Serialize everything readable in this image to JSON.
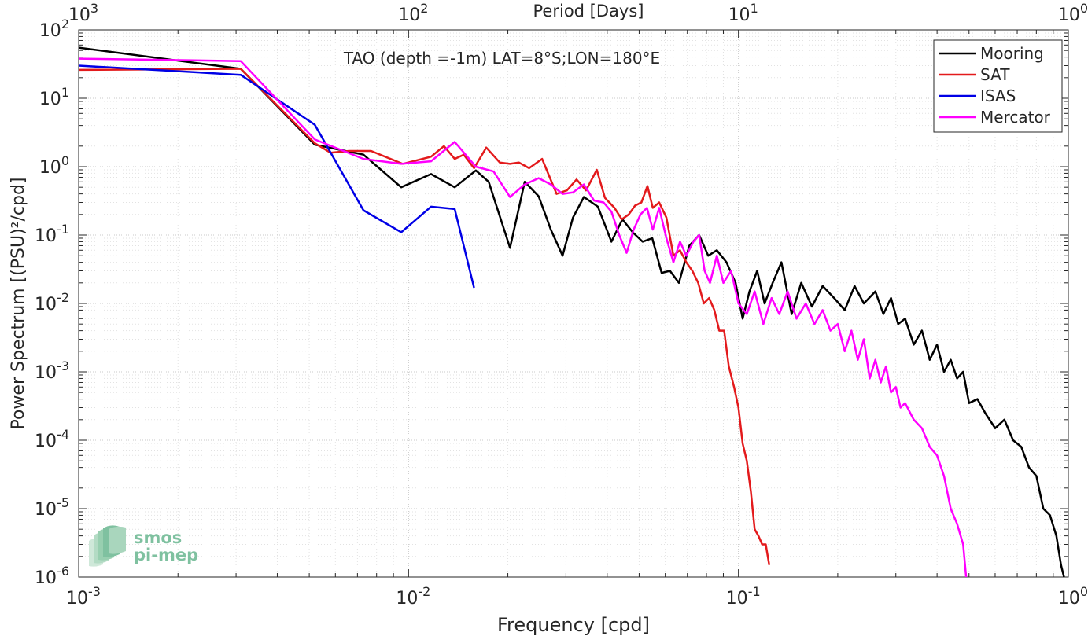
{
  "chart_data": {
    "type": "line",
    "title": "TAO (depth =-1m) LAT=8°S;LON=180°E",
    "xlabel": "Frequency [cpd]",
    "ylabel": "Power Spectrum [(PSU)²/cpd]",
    "top_xlabel": "Period [Days]",
    "xscale": "log",
    "yscale": "log",
    "xlim": [
      0.001,
      1
    ],
    "ylim": [
      1e-06,
      100
    ],
    "grid": true,
    "legend_position": "top-right",
    "x_ticks": [
      {
        "value": 0.001,
        "base": "10",
        "exp": "-3"
      },
      {
        "value": 0.01,
        "base": "10",
        "exp": "-2"
      },
      {
        "value": 0.1,
        "base": "10",
        "exp": "-1"
      },
      {
        "value": 1,
        "base": "10",
        "exp": "0"
      }
    ],
    "top_ticks": [
      {
        "value": 0.001,
        "base": "10",
        "exp": "3"
      },
      {
        "value": 0.01,
        "base": "10",
        "exp": "2"
      },
      {
        "value": 0.1,
        "base": "10",
        "exp": "1"
      },
      {
        "value": 1,
        "base": "10",
        "exp": "0"
      }
    ],
    "y_ticks": [
      {
        "value": 100,
        "base": "10",
        "exp": "2"
      },
      {
        "value": 10,
        "base": "10",
        "exp": "1"
      },
      {
        "value": 1,
        "base": "10",
        "exp": "0"
      },
      {
        "value": 0.1,
        "base": "10",
        "exp": "-1"
      },
      {
        "value": 0.01,
        "base": "10",
        "exp": "-2"
      },
      {
        "value": 0.001,
        "base": "10",
        "exp": "-3"
      },
      {
        "value": 0.0001,
        "base": "10",
        "exp": "-4"
      },
      {
        "value": 1e-05,
        "base": "10",
        "exp": "-5"
      },
      {
        "value": 1e-06,
        "base": "10",
        "exp": "-6"
      }
    ],
    "series": [
      {
        "name": "Mooring",
        "color": "#000000",
        "points": [
          [
            0.001,
            55
          ],
          [
            0.0031,
            27
          ],
          [
            0.0052,
            2.1
          ],
          [
            0.0073,
            1.5
          ],
          [
            0.0095,
            0.5
          ],
          [
            0.0117,
            0.78
          ],
          [
            0.0138,
            0.5
          ],
          [
            0.016,
            0.88
          ],
          [
            0.0175,
            0.6
          ],
          [
            0.0203,
            0.065
          ],
          [
            0.0225,
            0.6
          ],
          [
            0.0248,
            0.37
          ],
          [
            0.027,
            0.12
          ],
          [
            0.0293,
            0.05
          ],
          [
            0.0315,
            0.18
          ],
          [
            0.034,
            0.36
          ],
          [
            0.0375,
            0.26
          ],
          [
            0.0412,
            0.08
          ],
          [
            0.0445,
            0.17
          ],
          [
            0.0478,
            0.11
          ],
          [
            0.0512,
            0.08
          ],
          [
            0.0548,
            0.09
          ],
          [
            0.0585,
            0.028
          ],
          [
            0.062,
            0.03
          ],
          [
            0.066,
            0.02
          ],
          [
            0.071,
            0.07
          ],
          [
            0.076,
            0.1
          ],
          [
            0.081,
            0.05
          ],
          [
            0.086,
            0.06
          ],
          [
            0.092,
            0.04
          ],
          [
            0.098,
            0.02
          ],
          [
            0.103,
            0.006
          ],
          [
            0.108,
            0.015
          ],
          [
            0.114,
            0.03
          ],
          [
            0.12,
            0.01
          ],
          [
            0.127,
            0.02
          ],
          [
            0.135,
            0.04
          ],
          [
            0.145,
            0.007
          ],
          [
            0.155,
            0.02
          ],
          [
            0.167,
            0.009
          ],
          [
            0.18,
            0.018
          ],
          [
            0.195,
            0.012
          ],
          [
            0.21,
            0.008
          ],
          [
            0.225,
            0.018
          ],
          [
            0.24,
            0.01
          ],
          [
            0.26,
            0.015
          ],
          [
            0.275,
            0.007
          ],
          [
            0.29,
            0.012
          ],
          [
            0.305,
            0.005
          ],
          [
            0.32,
            0.006
          ],
          [
            0.34,
            0.0025
          ],
          [
            0.36,
            0.004
          ],
          [
            0.38,
            0.0015
          ],
          [
            0.4,
            0.0025
          ],
          [
            0.42,
            0.001
          ],
          [
            0.44,
            0.0015
          ],
          [
            0.46,
            0.0008
          ],
          [
            0.48,
            0.001
          ],
          [
            0.5,
            0.00035
          ],
          [
            0.53,
            0.0004
          ],
          [
            0.56,
            0.00025
          ],
          [
            0.6,
            0.00015
          ],
          [
            0.64,
            0.0002
          ],
          [
            0.68,
            0.0001
          ],
          [
            0.72,
            8e-05
          ],
          [
            0.76,
            4e-05
          ],
          [
            0.8,
            3e-05
          ],
          [
            0.84,
            1e-05
          ],
          [
            0.88,
            8e-06
          ],
          [
            0.92,
            4e-06
          ],
          [
            0.95,
            1.5e-06
          ],
          [
            0.97,
            1e-06
          ]
        ]
      },
      {
        "name": "SAT",
        "color": "#e31a1c",
        "points": [
          [
            0.001,
            26
          ],
          [
            0.0031,
            27
          ],
          [
            0.0052,
            2.2
          ],
          [
            0.0058,
            1.6
          ],
          [
            0.0066,
            1.7
          ],
          [
            0.0077,
            1.7
          ],
          [
            0.0096,
            1.1
          ],
          [
            0.0117,
            1.4
          ],
          [
            0.0128,
            2.0
          ],
          [
            0.0138,
            1.3
          ],
          [
            0.0147,
            1.5
          ],
          [
            0.0158,
            0.95
          ],
          [
            0.0172,
            1.9
          ],
          [
            0.0189,
            1.15
          ],
          [
            0.0203,
            1.1
          ],
          [
            0.0216,
            1.15
          ],
          [
            0.0232,
            0.95
          ],
          [
            0.0254,
            1.3
          ],
          [
            0.0281,
            0.4
          ],
          [
            0.0302,
            0.45
          ],
          [
            0.0323,
            0.65
          ],
          [
            0.0345,
            0.45
          ],
          [
            0.0372,
            0.9
          ],
          [
            0.0394,
            0.35
          ],
          [
            0.0421,
            0.25
          ],
          [
            0.0443,
            0.17
          ],
          [
            0.0465,
            0.2
          ],
          [
            0.0486,
            0.27
          ],
          [
            0.0508,
            0.3
          ],
          [
            0.053,
            0.52
          ],
          [
            0.055,
            0.25
          ],
          [
            0.0575,
            0.3
          ],
          [
            0.0605,
            0.18
          ],
          [
            0.0635,
            0.05
          ],
          [
            0.0665,
            0.06
          ],
          [
            0.0695,
            0.04
          ],
          [
            0.0725,
            0.03
          ],
          [
            0.0755,
            0.02
          ],
          [
            0.0785,
            0.01
          ],
          [
            0.0815,
            0.012
          ],
          [
            0.0845,
            0.008
          ],
          [
            0.0875,
            0.004
          ],
          [
            0.0905,
            0.004
          ],
          [
            0.0935,
            0.0012
          ],
          [
            0.097,
            0.0006
          ],
          [
            0.1,
            0.0003
          ],
          [
            0.103,
            9e-05
          ],
          [
            0.106,
            5e-05
          ],
          [
            0.109,
            1.8e-05
          ],
          [
            0.112,
            5e-06
          ],
          [
            0.115,
            4e-06
          ],
          [
            0.118,
            3e-06
          ],
          [
            0.121,
            3e-06
          ],
          [
            0.124,
            1.5e-06
          ]
        ]
      },
      {
        "name": "ISAS",
        "color": "#0000e6",
        "points": [
          [
            0.001,
            30
          ],
          [
            0.0031,
            22
          ],
          [
            0.0052,
            4.1
          ],
          [
            0.0073,
            0.23
          ],
          [
            0.0095,
            0.11
          ],
          [
            0.0117,
            0.26
          ],
          [
            0.0138,
            0.24
          ],
          [
            0.0158,
            0.017
          ]
        ]
      },
      {
        "name": "Mercator",
        "color": "#ff00ff",
        "points": [
          [
            0.001,
            38
          ],
          [
            0.0031,
            35
          ],
          [
            0.0052,
            2.5
          ],
          [
            0.0073,
            1.3
          ],
          [
            0.0095,
            1.1
          ],
          [
            0.0117,
            1.2
          ],
          [
            0.0138,
            2.3
          ],
          [
            0.016,
            1.0
          ],
          [
            0.0181,
            0.85
          ],
          [
            0.0203,
            0.36
          ],
          [
            0.0225,
            0.55
          ],
          [
            0.0248,
            0.68
          ],
          [
            0.027,
            0.55
          ],
          [
            0.0293,
            0.4
          ],
          [
            0.0315,
            0.42
          ],
          [
            0.034,
            0.55
          ],
          [
            0.0365,
            0.32
          ],
          [
            0.039,
            0.3
          ],
          [
            0.0412,
            0.22
          ],
          [
            0.0435,
            0.1
          ],
          [
            0.0458,
            0.055
          ],
          [
            0.0481,
            0.12
          ],
          [
            0.0505,
            0.2
          ],
          [
            0.0528,
            0.25
          ],
          [
            0.055,
            0.12
          ],
          [
            0.0575,
            0.25
          ],
          [
            0.0605,
            0.09
          ],
          [
            0.0635,
            0.04
          ],
          [
            0.0665,
            0.08
          ],
          [
            0.0695,
            0.05
          ],
          [
            0.073,
            0.08
          ],
          [
            0.076,
            0.1
          ],
          [
            0.079,
            0.03
          ],
          [
            0.082,
            0.02
          ],
          [
            0.086,
            0.05
          ],
          [
            0.09,
            0.02
          ],
          [
            0.095,
            0.03
          ],
          [
            0.1,
            0.01
          ],
          [
            0.106,
            0.007
          ],
          [
            0.112,
            0.015
          ],
          [
            0.119,
            0.005
          ],
          [
            0.126,
            0.012
          ],
          [
            0.133,
            0.007
          ],
          [
            0.141,
            0.015
          ],
          [
            0.15,
            0.006
          ],
          [
            0.16,
            0.01
          ],
          [
            0.17,
            0.005
          ],
          [
            0.18,
            0.008
          ],
          [
            0.19,
            0.004
          ],
          [
            0.2,
            0.005
          ],
          [
            0.21,
            0.002
          ],
          [
            0.22,
            0.004
          ],
          [
            0.23,
            0.0015
          ],
          [
            0.24,
            0.003
          ],
          [
            0.25,
            0.0008
          ],
          [
            0.26,
            0.0015
          ],
          [
            0.27,
            0.0007
          ],
          [
            0.28,
            0.0012
          ],
          [
            0.29,
            0.0005
          ],
          [
            0.3,
            0.0006
          ],
          [
            0.31,
            0.0003
          ],
          [
            0.32,
            0.00035
          ],
          [
            0.34,
            0.0002
          ],
          [
            0.36,
            0.00015
          ],
          [
            0.38,
            8e-05
          ],
          [
            0.4,
            6e-05
          ],
          [
            0.42,
            3e-05
          ],
          [
            0.44,
            1e-05
          ],
          [
            0.46,
            6e-06
          ],
          [
            0.48,
            3e-06
          ],
          [
            0.49,
            1e-06
          ]
        ]
      }
    ]
  },
  "watermark": {
    "line1": "smos",
    "line2": "pi-mep",
    "color": "#7fc1a0"
  }
}
